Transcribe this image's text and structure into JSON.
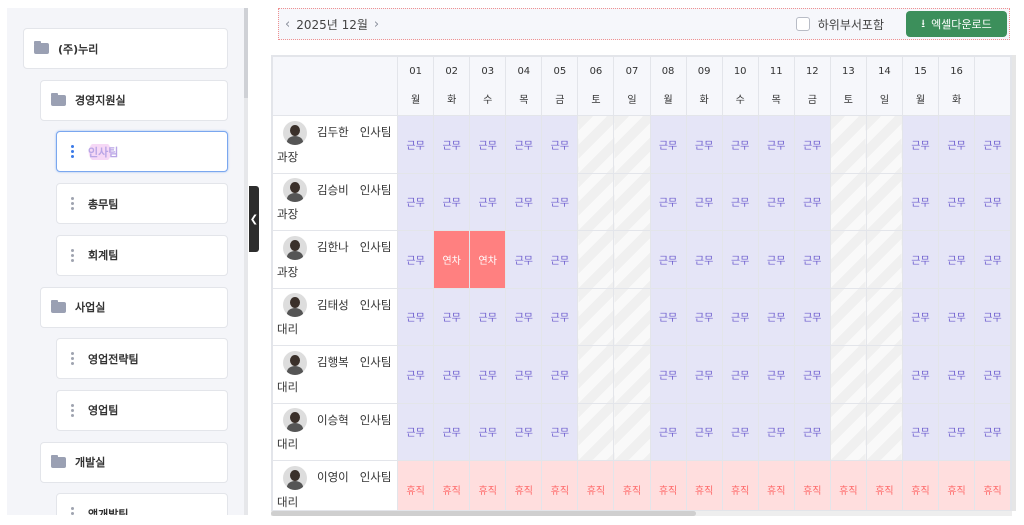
{
  "sidebar": {
    "items": [
      {
        "label": "(주)누리",
        "type": "folder",
        "level": 0
      },
      {
        "label": "경영지원실",
        "type": "folder",
        "level": 1
      },
      {
        "label": "인사팀",
        "type": "team",
        "level": 2,
        "selected": true
      },
      {
        "label": "총무팀",
        "type": "team",
        "level": 2
      },
      {
        "label": "회계팀",
        "type": "team",
        "level": 2
      },
      {
        "label": "사업실",
        "type": "folder",
        "level": 1
      },
      {
        "label": "영업전략팀",
        "type": "team",
        "level": 2
      },
      {
        "label": "영업팀",
        "type": "team",
        "level": 2
      },
      {
        "label": "개발실",
        "type": "folder",
        "level": 1
      },
      {
        "label": "앱개발팀",
        "type": "team",
        "level": 2
      }
    ]
  },
  "toolbar": {
    "prev": "‹",
    "month": "2025년 12월",
    "next": "›",
    "include_sub_label": "하위부서포함",
    "include_sub_checked": false,
    "excel_label": "엑셀다운로드",
    "excel_color": "#3c8f5b"
  },
  "days": [
    {
      "d": "01",
      "w": "월"
    },
    {
      "d": "02",
      "w": "화"
    },
    {
      "d": "03",
      "w": "수"
    },
    {
      "d": "04",
      "w": "목"
    },
    {
      "d": "05",
      "w": "금"
    },
    {
      "d": "06",
      "w": "토"
    },
    {
      "d": "07",
      "w": "일"
    },
    {
      "d": "08",
      "w": "월"
    },
    {
      "d": "09",
      "w": "화"
    },
    {
      "d": "10",
      "w": "수"
    },
    {
      "d": "11",
      "w": "목"
    },
    {
      "d": "12",
      "w": "금"
    },
    {
      "d": "13",
      "w": "토"
    },
    {
      "d": "14",
      "w": "일"
    },
    {
      "d": "15",
      "w": "월"
    },
    {
      "d": "16",
      "w": "화"
    },
    {
      "d": "",
      "w": ""
    }
  ],
  "status_labels": {
    "work": "근무",
    "leave": "연차",
    "rest": "휴직",
    "off": ""
  },
  "employees": [
    {
      "name": "김두한",
      "team": "인사팀",
      "position": "과장",
      "status": [
        "work",
        "work",
        "work",
        "work",
        "work",
        "off",
        "off",
        "work",
        "work",
        "work",
        "work",
        "work",
        "off",
        "off",
        "work",
        "work",
        "work"
      ]
    },
    {
      "name": "김승비",
      "team": "인사팀",
      "position": "과장",
      "status": [
        "work",
        "work",
        "work",
        "work",
        "work",
        "off",
        "off",
        "work",
        "work",
        "work",
        "work",
        "work",
        "off",
        "off",
        "work",
        "work",
        "work"
      ]
    },
    {
      "name": "김한나",
      "team": "인사팀",
      "position": "과장",
      "status": [
        "work",
        "leave",
        "leave",
        "work",
        "work",
        "off",
        "off",
        "work",
        "work",
        "work",
        "work",
        "work",
        "off",
        "off",
        "work",
        "work",
        "work"
      ]
    },
    {
      "name": "김태성",
      "team": "인사팀",
      "position": "대리",
      "status": [
        "work",
        "work",
        "work",
        "work",
        "work",
        "off",
        "off",
        "work",
        "work",
        "work",
        "work",
        "work",
        "off",
        "off",
        "work",
        "work",
        "work"
      ]
    },
    {
      "name": "김행복",
      "team": "인사팀",
      "position": "대리",
      "status": [
        "work",
        "work",
        "work",
        "work",
        "work",
        "off",
        "off",
        "work",
        "work",
        "work",
        "work",
        "work",
        "off",
        "off",
        "work",
        "work",
        "work"
      ]
    },
    {
      "name": "이승혁",
      "team": "인사팀",
      "position": "대리",
      "status": [
        "work",
        "work",
        "work",
        "work",
        "work",
        "off",
        "off",
        "work",
        "work",
        "work",
        "work",
        "work",
        "off",
        "off",
        "work",
        "work",
        "work"
      ]
    },
    {
      "name": "이영이",
      "team": "인사팀",
      "position": "대리",
      "status": [
        "rest",
        "rest",
        "rest",
        "rest",
        "rest",
        "rest",
        "rest",
        "rest",
        "rest",
        "rest",
        "rest",
        "rest",
        "rest",
        "rest",
        "rest",
        "rest",
        "rest"
      ]
    }
  ]
}
